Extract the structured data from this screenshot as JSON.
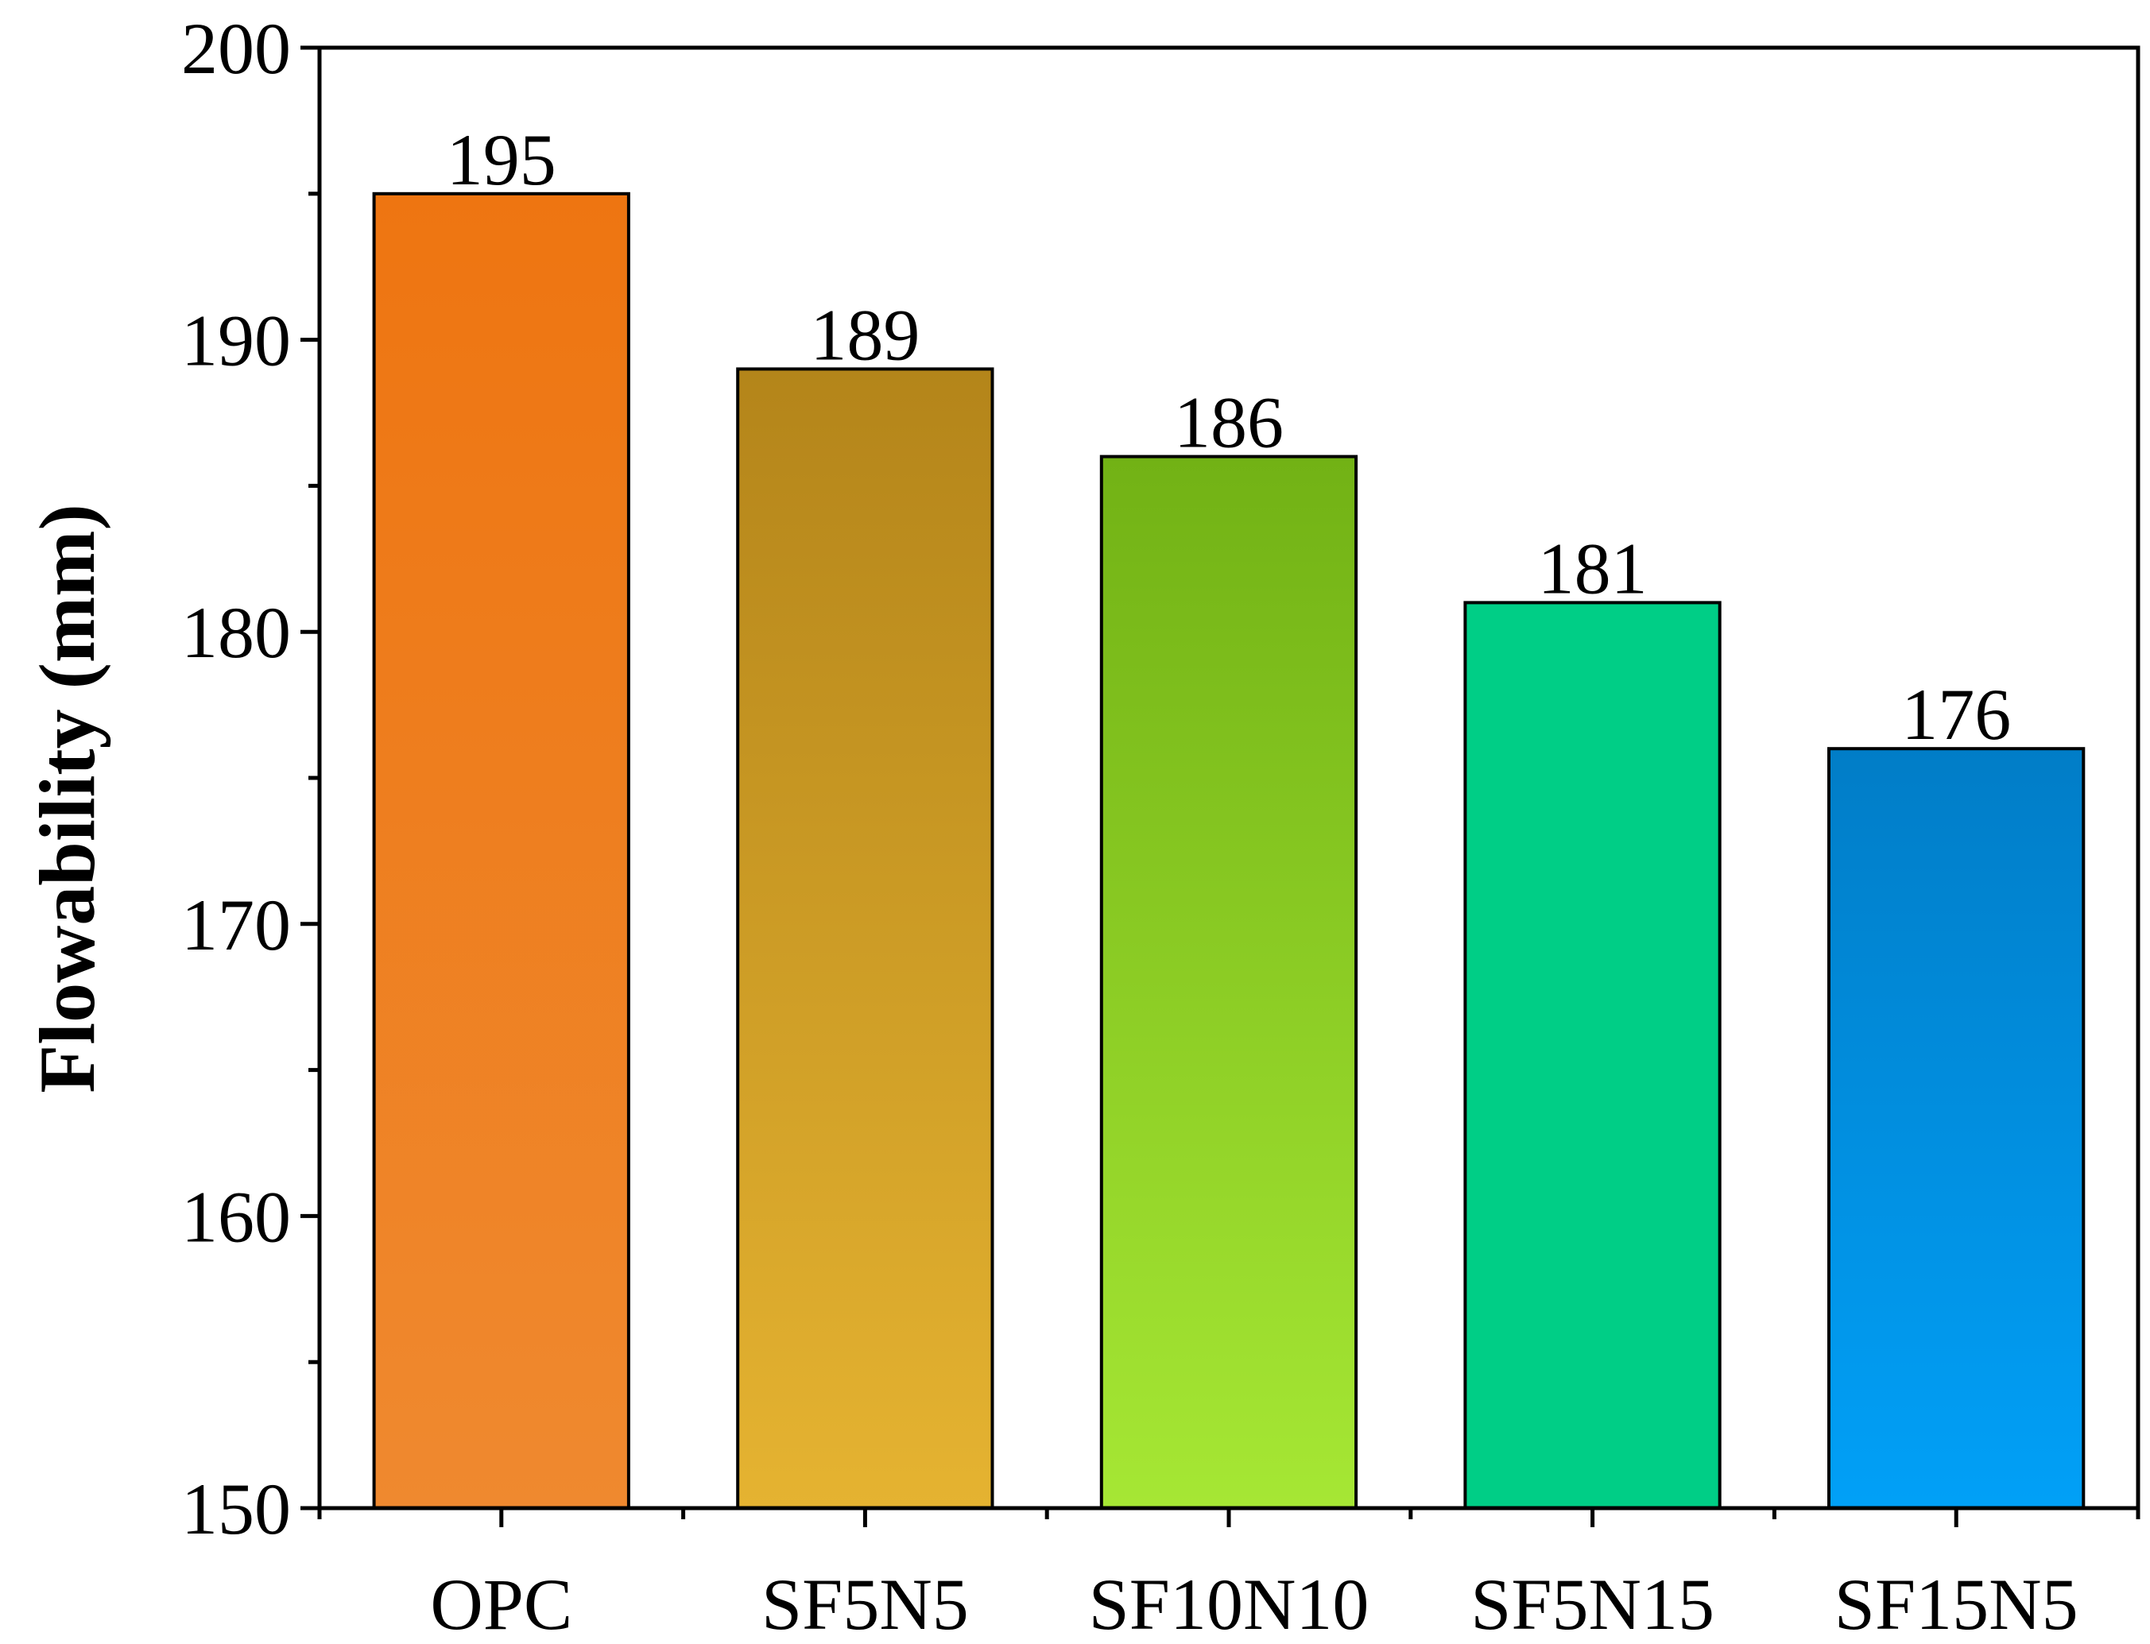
{
  "chart_data": {
    "type": "bar",
    "title": "",
    "xlabel": "",
    "ylabel": "Flowability (mm)",
    "ylim": [
      150,
      200
    ],
    "yticks": [
      150,
      160,
      170,
      180,
      190,
      200
    ],
    "ytick_labels": [
      "150",
      "160",
      "170",
      "180",
      "190",
      "200"
    ],
    "categories": [
      "OPC",
      "SF5N5",
      "SF10N10",
      "SF5N15",
      "SF15N5"
    ],
    "values": [
      195,
      189,
      186,
      181,
      176
    ],
    "data_labels": [
      "195",
      "189",
      "186",
      "181",
      "176"
    ],
    "grid": false,
    "legend": "none",
    "colors": [
      {
        "top": "#EE7511",
        "bottom": "#EF892F"
      },
      {
        "top": "#B4851A",
        "bottom": "#E5B331"
      },
      {
        "top": "#72B215",
        "bottom": "#A6E734"
      },
      {
        "top": "#00CE86",
        "bottom": "#00CE86"
      },
      {
        "top": "#017DC7",
        "bottom": "#01A0F7"
      }
    ]
  }
}
